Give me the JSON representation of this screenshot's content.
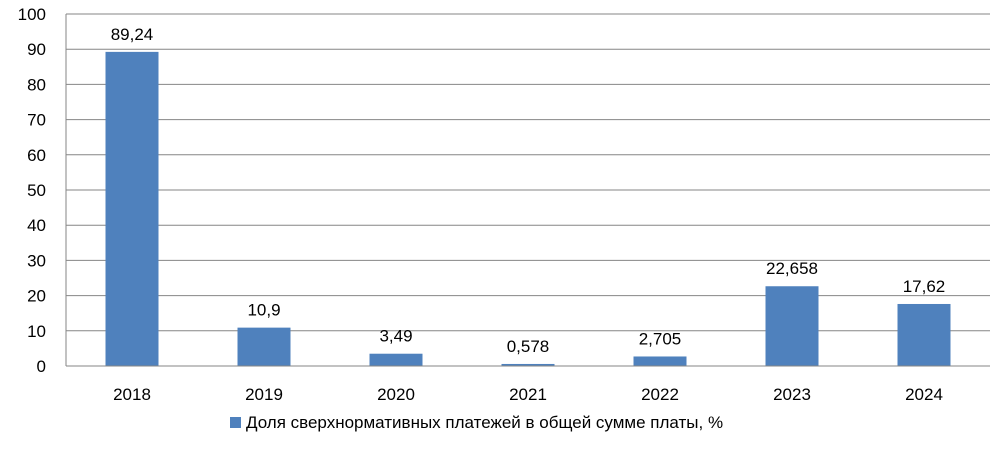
{
  "chart_data": {
    "type": "bar",
    "categories": [
      "2018",
      "2019",
      "2020",
      "2021",
      "2022",
      "2023",
      "2024"
    ],
    "series": [
      {
        "name": "Доля сверхнормативных платежей в общей сумме платы, %",
        "values": [
          89.24,
          10.9,
          3.49,
          0.578,
          2.705,
          22.658,
          17.62
        ],
        "labels": [
          "89,24",
          "10,9",
          "3,49",
          "0,578",
          "2,705",
          "22,658",
          "17,62"
        ],
        "color": "#4F81BD"
      }
    ],
    "yticks": [
      "0",
      "10",
      "20",
      "30",
      "40",
      "50",
      "60",
      "70",
      "80",
      "90",
      "100"
    ],
    "ylim": [
      0,
      100
    ],
    "grid": true,
    "legend_position": "bottom"
  }
}
